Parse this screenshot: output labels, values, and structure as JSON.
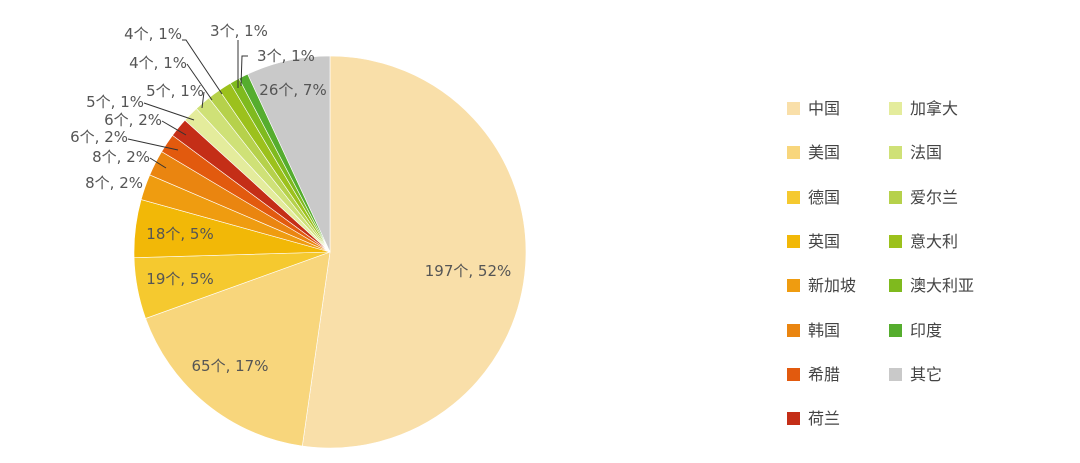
{
  "chart_data": {
    "type": "pie",
    "title": "",
    "legend_position": "right",
    "slices": [
      {
        "name": "中国",
        "value": 197,
        "percent": "52%",
        "label": "197个, 52%",
        "color": "#f9dfa9"
      },
      {
        "name": "美国",
        "value": 65,
        "percent": "17%",
        "label": "65个, 17%",
        "color": "#f8d67c"
      },
      {
        "name": "德国",
        "value": 19,
        "percent": "5%",
        "label": "19个, 5%",
        "color": "#f5c92f"
      },
      {
        "name": "英国",
        "value": 18,
        "percent": "5%",
        "label": "18个, 5%",
        "color": "#f2b807"
      },
      {
        "name": "新加坡",
        "value": 8,
        "percent": "2%",
        "label": "8个, 2%",
        "color": "#ef9c10"
      },
      {
        "name": "韩国",
        "value": 8,
        "percent": "2%",
        "label": "8个, 2%",
        "color": "#ea8510"
      },
      {
        "name": "希腊",
        "value": 6,
        "percent": "2%",
        "label": "6个, 2%",
        "color": "#e25a0e"
      },
      {
        "name": "荷兰",
        "value": 6,
        "percent": "2%",
        "label": "6个, 2%",
        "color": "#c42e17"
      },
      {
        "name": "加拿大",
        "value": 5,
        "percent": "1%",
        "label": "5个, 1%",
        "color": "#e4ec9c"
      },
      {
        "name": "法国",
        "value": 5,
        "percent": "1%",
        "label": "5个, 1%",
        "color": "#cfe177"
      },
      {
        "name": "爱尔兰",
        "value": 4,
        "percent": "1%",
        "label": "4个, 1%",
        "color": "#b6d14b"
      },
      {
        "name": "意大利",
        "value": 4,
        "percent": "1%",
        "label": "4个, 1%",
        "color": "#9cc11c"
      },
      {
        "name": "澳大利亚",
        "value": 3,
        "percent": "1%",
        "label": "3个, 1%",
        "color": "#7fba1e"
      },
      {
        "name": "印度",
        "value": 3,
        "percent": "1%",
        "label": "3个, 1%",
        "color": "#55ad2e"
      },
      {
        "name": "其它",
        "value": 26,
        "percent": "7%",
        "label": "26个, 7%",
        "color": "#c9c9c9"
      }
    ]
  }
}
